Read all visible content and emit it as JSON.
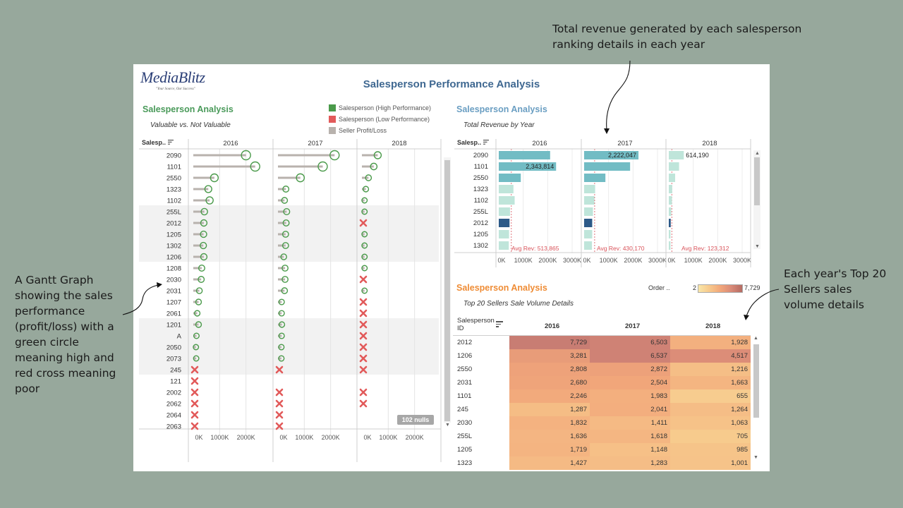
{
  "annotations": {
    "top_right": [
      "Total revenue generated by each salesperson",
      "ranking details in each year"
    ],
    "left": [
      "A Gantt Graph",
      "showing the sales",
      "performance",
      "(profit/loss) with a",
      "green circle",
      "meaning high and",
      "red cross meaning",
      "poor"
    ],
    "right": [
      "Each year's Top 20",
      "Sellers sales",
      "volume details"
    ]
  },
  "dashboard": {
    "logo_text": "MediaBlitz",
    "logo_tagline": "\"Your Source, Our Success\"",
    "title": "Salesperson Performance Analysis"
  },
  "colors": {
    "title": "#3f6891",
    "section_green": "#4a9a5a",
    "section_blue": "#6a9ec2",
    "section_orange": "#ef8c35",
    "high": "#4a9a4a",
    "low": "#e25a5a",
    "profit_bar": "#b8b2ad",
    "rev_light": "#bfe5da",
    "rev_mid": "#72bcc4",
    "rev_dark": "#2d5a88",
    "avg_red": "#d9535a"
  },
  "gantt_section": {
    "title": "Salesperson Analysis",
    "subtitle": "Valuable vs. Not Valuable",
    "legend": [
      {
        "label": "Salesperson (High Performance)",
        "color": "#4a9a4a"
      },
      {
        "label": "Salesperson (Low Performance)",
        "color": "#e25a5a"
      },
      {
        "label": "Seller Profit/Loss",
        "color": "#b8b2ad"
      }
    ],
    "null_badge": "102 nulls"
  },
  "revenue_section": {
    "title": "Salesperson Analysis",
    "subtitle": "Total Revenue by Year"
  },
  "top20_section": {
    "title": "Salesperson Analysis",
    "subtitle": "Top 20 Sellers Sale Volume Details",
    "order_legend_label": "Order ..",
    "order_legend_min": "2",
    "order_legend_max": "7,729",
    "id_header": [
      "Salesperson",
      "ID"
    ]
  },
  "chart_data": [
    {
      "type": "gantt",
      "row_header": "Salesp..",
      "columns": [
        "2016",
        "2017",
        "2018"
      ],
      "xlim": [
        0,
        3000000
      ],
      "x_ticks": [
        "0K",
        "1000K",
        "2000K"
      ],
      "rows": [
        {
          "id": "2090",
          "values": [
            2000000,
            2150000,
            600000
          ],
          "status": [
            "high",
            "high",
            "high"
          ]
        },
        {
          "id": "1101",
          "values": [
            2350000,
            1700000,
            450000
          ],
          "status": [
            "high",
            "high",
            "high"
          ]
        },
        {
          "id": "2550",
          "values": [
            800000,
            850000,
            250000
          ],
          "status": [
            "high",
            "high",
            "high"
          ]
        },
        {
          "id": "1323",
          "values": [
            570000,
            300000,
            150000
          ],
          "status": [
            "high",
            "high",
            "high"
          ]
        },
        {
          "id": "1102",
          "values": [
            620000,
            250000,
            100000
          ],
          "status": [
            "high",
            "high",
            "high"
          ]
        },
        {
          "id": "255L",
          "values": [
            420000,
            330000,
            100000
          ],
          "status": [
            "high",
            "high",
            "high"
          ]
        },
        {
          "id": "2012",
          "values": [
            400000,
            310000,
            0
          ],
          "status": [
            "high",
            "high",
            "low"
          ]
        },
        {
          "id": "1205",
          "values": [
            390000,
            290000,
            100000
          ],
          "status": [
            "high",
            "high",
            "high"
          ]
        },
        {
          "id": "1302",
          "values": [
            380000,
            290000,
            100000
          ],
          "status": [
            "high",
            "high",
            "high"
          ]
        },
        {
          "id": "1206",
          "values": [
            400000,
            220000,
            100000
          ],
          "status": [
            "high",
            "high",
            "high"
          ]
        },
        {
          "id": "1208",
          "values": [
            320000,
            270000,
            100000
          ],
          "status": [
            "high",
            "high",
            "high"
          ]
        },
        {
          "id": "2030",
          "values": [
            300000,
            270000,
            0
          ],
          "status": [
            "high",
            "high",
            "low"
          ]
        },
        {
          "id": "2031",
          "values": [
            230000,
            250000,
            100000
          ],
          "status": [
            "high",
            "high",
            "high"
          ]
        },
        {
          "id": "1207",
          "values": [
            200000,
            140000,
            0
          ],
          "status": [
            "high",
            "high",
            "low"
          ]
        },
        {
          "id": "2061",
          "values": [
            150000,
            140000,
            0
          ],
          "status": [
            "high",
            "high",
            "low"
          ]
        },
        {
          "id": "1201",
          "values": [
            200000,
            150000,
            0
          ],
          "status": [
            "high",
            "high",
            "low"
          ]
        },
        {
          "id": "A",
          "values": [
            120000,
            140000,
            0
          ],
          "status": [
            "high",
            "high",
            "low"
          ]
        },
        {
          "id": "2050",
          "values": [
            100000,
            130000,
            0
          ],
          "status": [
            "high",
            "high",
            "low"
          ]
        },
        {
          "id": "2073",
          "values": [
            110000,
            130000,
            0
          ],
          "status": [
            "high",
            "high",
            "low"
          ]
        },
        {
          "id": "245",
          "values": [
            0,
            0,
            0
          ],
          "status": [
            "low",
            "low",
            "low"
          ]
        },
        {
          "id": "121",
          "values": [
            0,
            null,
            null
          ],
          "status": [
            "low",
            null,
            null
          ]
        },
        {
          "id": "2002",
          "values": [
            0,
            0,
            0
          ],
          "status": [
            "low",
            "low",
            "low"
          ]
        },
        {
          "id": "2062",
          "values": [
            0,
            0,
            0
          ],
          "status": [
            "low",
            "low",
            "low"
          ]
        },
        {
          "id": "2064",
          "values": [
            0,
            0,
            null
          ],
          "status": [
            "low",
            "low",
            null
          ]
        },
        {
          "id": "2063",
          "values": [
            0,
            0,
            null
          ],
          "status": [
            "low",
            "low",
            null
          ]
        }
      ]
    },
    {
      "type": "bar",
      "row_header": "Salesp..",
      "columns": [
        "2016",
        "2017",
        "2018"
      ],
      "xlim": [
        0,
        3000000
      ],
      "x_ticks": [
        "0K",
        "1000K",
        "2000K",
        "3000K"
      ],
      "avg_labels": [
        "Avg Rev: 513,865",
        "Avg Rev: 430,170",
        "Avg Rev: 123,312"
      ],
      "avg_values": [
        513865,
        430170,
        123312
      ],
      "rows": [
        {
          "id": "2090",
          "values": [
            2100000,
            2222047,
            614190
          ],
          "labels": [
            "",
            "2,222,047",
            "614,190"
          ]
        },
        {
          "id": "1101",
          "values": [
            2343814,
            1880000,
            420000
          ],
          "labels": [
            "2,343,814",
            "",
            ""
          ]
        },
        {
          "id": "2550",
          "values": [
            900000,
            870000,
            260000
          ],
          "labels": [
            "",
            "",
            ""
          ]
        },
        {
          "id": "1323",
          "values": [
            600000,
            450000,
            140000
          ],
          "labels": [
            "",
            "",
            ""
          ]
        },
        {
          "id": "1102",
          "values": [
            650000,
            420000,
            130000
          ],
          "labels": [
            "",
            "",
            ""
          ]
        },
        {
          "id": "255L",
          "values": [
            460000,
            360000,
            100000
          ],
          "labels": [
            "",
            "",
            ""
          ]
        },
        {
          "id": "2012",
          "values": [
            440000,
            330000,
            80000
          ],
          "labels": [
            "",
            "",
            ""
          ]
        },
        {
          "id": "1205",
          "values": [
            420000,
            330000,
            70000
          ],
          "labels": [
            "",
            "",
            ""
          ]
        },
        {
          "id": "1302",
          "values": [
            410000,
            320000,
            70000
          ],
          "labels": [
            "",
            "",
            ""
          ]
        }
      ],
      "highlight_row": "2012"
    },
    {
      "type": "heatmap",
      "columns": [
        "2016",
        "2017",
        "2018"
      ],
      "rows": [
        {
          "id": "2012",
          "values": [
            7729,
            6503,
            1928
          ],
          "labels": [
            "7,729",
            "6,503",
            "1,928"
          ]
        },
        {
          "id": "1206",
          "values": [
            3281,
            6537,
            4517
          ],
          "labels": [
            "3,281",
            "6,537",
            "4,517"
          ]
        },
        {
          "id": "2550",
          "values": [
            2808,
            2872,
            1216
          ],
          "labels": [
            "2,808",
            "2,872",
            "1,216"
          ]
        },
        {
          "id": "2031",
          "values": [
            2680,
            2504,
            1663
          ],
          "labels": [
            "2,680",
            "2,504",
            "1,663"
          ]
        },
        {
          "id": "1101",
          "values": [
            2246,
            1983,
            655
          ],
          "labels": [
            "2,246",
            "1,983",
            "655"
          ]
        },
        {
          "id": "245",
          "values": [
            1287,
            2041,
            1264
          ],
          "labels": [
            "1,287",
            "2,041",
            "1,264"
          ]
        },
        {
          "id": "2030",
          "values": [
            1832,
            1411,
            1063
          ],
          "labels": [
            "1,832",
            "1,411",
            "1,063"
          ]
        },
        {
          "id": "255L",
          "values": [
            1636,
            1618,
            705
          ],
          "labels": [
            "1,636",
            "1,618",
            "705"
          ]
        },
        {
          "id": "1205",
          "values": [
            1719,
            1148,
            985
          ],
          "labels": [
            "1,719",
            "1,148",
            "985"
          ]
        },
        {
          "id": "1323",
          "values": [
            1427,
            1283,
            1001
          ],
          "labels": [
            "1,427",
            "1,283",
            "1,001"
          ]
        }
      ],
      "color_range": [
        2,
        7729
      ]
    }
  ]
}
